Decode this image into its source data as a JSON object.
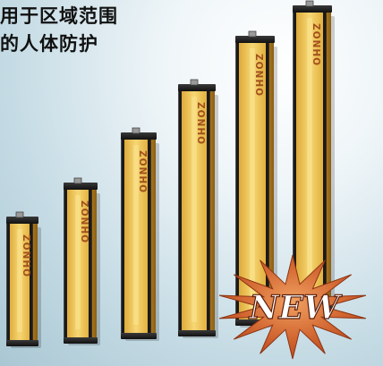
{
  "caption": {
    "line1": "用于区域范围",
    "line2": "的人体防护"
  },
  "brand": "ZONHO",
  "badge": {
    "text": "NEW",
    "fill": "#c04a1f",
    "text_color": "#ffffff"
  },
  "colors": {
    "housing": "#e8b73e",
    "housing_light": "#f6d774",
    "housing_edge": "#1a1a1a",
    "cap": "#1e1e1e",
    "brand_text": "#a14f1c"
  },
  "product": {
    "count": 6
  }
}
